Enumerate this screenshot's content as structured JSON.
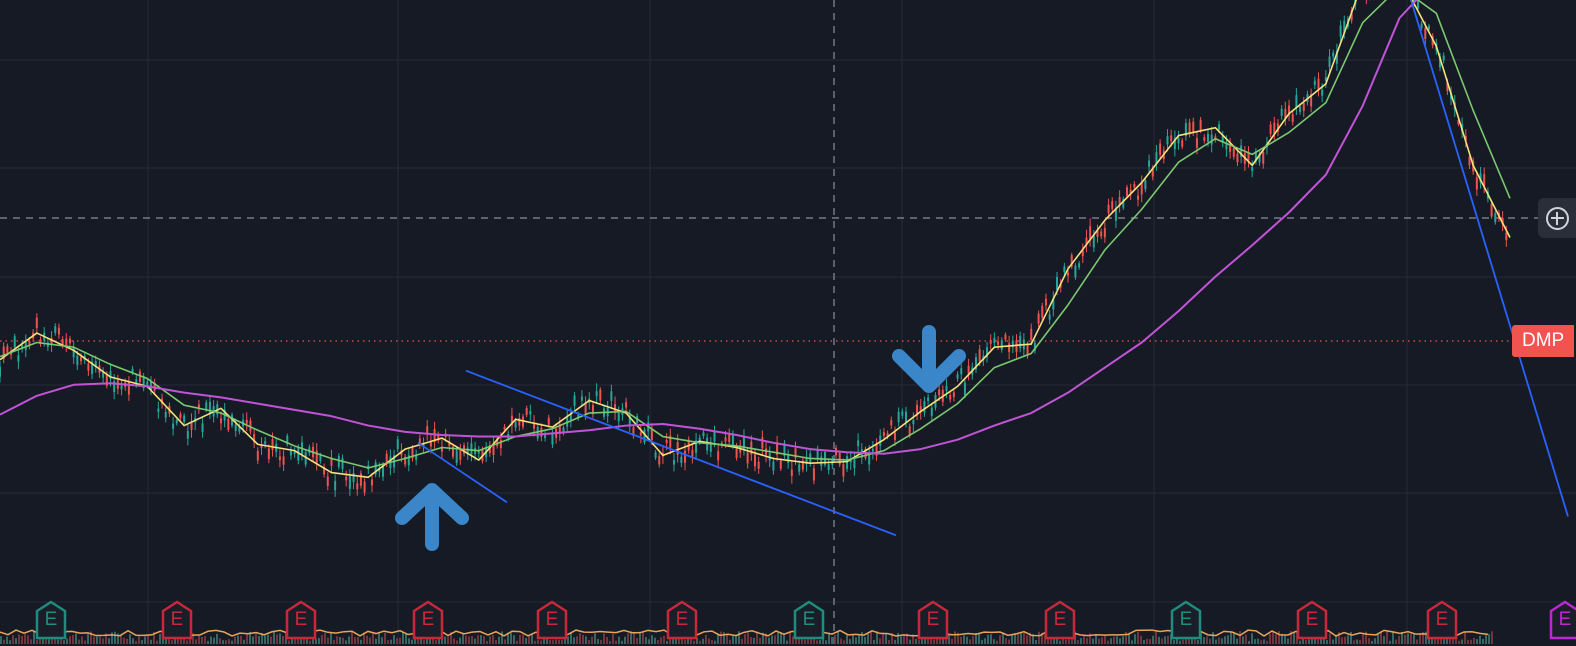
{
  "chart": {
    "symbol_tag": "DMP",
    "symbol_tag_color": "#f05350",
    "background": "#161a25",
    "colors": {
      "up_candle": "#26a69a",
      "down_candle": "#ef5350",
      "ma_fast": "#f6e27a",
      "ma_mid": "#7bc96f",
      "ma_slow": "#c154d6",
      "trendline": "#2962ff",
      "arrow": "#3a86c8",
      "volume": "#e8a55a"
    },
    "crosshair_button_icon": "crosshair-plus-icon",
    "earnings_markers": [
      {
        "label": "E",
        "kind": "beat",
        "color": "#1e8c7e"
      },
      {
        "label": "E",
        "kind": "miss",
        "color": "#c8283a"
      },
      {
        "label": "E",
        "kind": "miss",
        "color": "#c8283a"
      },
      {
        "label": "E",
        "kind": "miss",
        "color": "#c8283a"
      },
      {
        "label": "E",
        "kind": "miss",
        "color": "#c8283a"
      },
      {
        "label": "E",
        "kind": "miss",
        "color": "#c8283a"
      },
      {
        "label": "E",
        "kind": "beat",
        "color": "#1e8c7e"
      },
      {
        "label": "E",
        "kind": "miss",
        "color": "#c8283a"
      },
      {
        "label": "E",
        "kind": "miss",
        "color": "#c8283a"
      },
      {
        "label": "E",
        "kind": "beat",
        "color": "#1e8c7e"
      },
      {
        "label": "E",
        "kind": "miss",
        "color": "#c8283a"
      },
      {
        "label": "E",
        "kind": "miss",
        "color": "#c8283a"
      },
      {
        "label": "E",
        "kind": "upcoming",
        "color": "#c026d3"
      }
    ]
  },
  "chart_data": {
    "type": "line",
    "series": [
      {
        "values": [
          36.5,
          38.2,
          37.1,
          35.4,
          34.8,
          32.3,
          33.4,
          31.1,
          30.7,
          29.3,
          29.0,
          30.8,
          31.5,
          30.1,
          32.7,
          32.2,
          33.9,
          33.1,
          30.4,
          31.3,
          30.9,
          30.2,
          29.9,
          30.0,
          31.4,
          33.2,
          34.8,
          37.3,
          37.5,
          42.3,
          45.4,
          47.8,
          50.8,
          51.3,
          48.9,
          52.2,
          54.1,
          60.6,
          61.0,
          56.5,
          48.9,
          44.3
        ]
      },
      {
        "values": [
          36.7,
          37.6,
          37.3,
          36.2,
          35.3,
          33.6,
          33.1,
          32.0,
          31.0,
          30.2,
          29.6,
          30.2,
          30.9,
          30.7,
          31.6,
          32.1,
          33.1,
          33.2,
          31.6,
          31.2,
          31.0,
          30.6,
          30.2,
          30.1,
          30.7,
          32.1,
          33.7,
          36.0,
          36.9,
          40.0,
          43.5,
          46.1,
          49.1,
          50.6,
          49.6,
          51.0,
          52.9,
          58.0,
          60.3,
          58.6,
          52.4,
          46.8
        ]
      },
      {
        "values": [
          33.0,
          34.2,
          34.9,
          35.0,
          34.8,
          34.4,
          34.1,
          33.7,
          33.3,
          32.9,
          32.3,
          31.9,
          31.7,
          31.6,
          31.6,
          31.8,
          32.0,
          32.3,
          32.4,
          32.1,
          31.7,
          31.2,
          30.8,
          30.6,
          30.5,
          30.8,
          31.4,
          32.3,
          33.1,
          34.4,
          36.0,
          37.6,
          39.6,
          41.8,
          43.8,
          45.9,
          48.3,
          52.7,
          58.3,
          60.8,
          60.8,
          59.5
        ]
      }
    ],
    "trendlines": [
      {
        "start": 35.8,
        "end": 25.3
      },
      {
        "start": 31.2,
        "end": 27.4
      },
      {
        "start": 62.6,
        "end": 26.5
      }
    ],
    "earnings": [
      "E",
      "E",
      "E",
      "E",
      "E",
      "E",
      "E",
      "E",
      "E",
      "E",
      "E",
      "E",
      "E"
    ]
  }
}
